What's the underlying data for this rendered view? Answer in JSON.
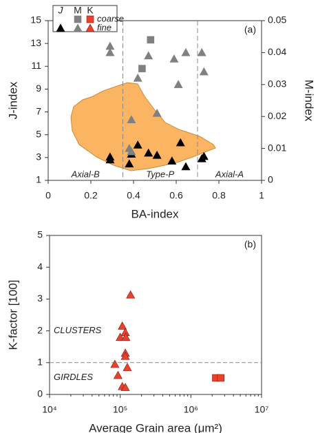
{
  "chart_data": [
    {
      "type": "scatter",
      "label": "(a)",
      "x_label": "BA-index",
      "y_label": "J-index",
      "y2_label": "M-index",
      "xlim": [
        0,
        1
      ],
      "xticks": [
        0,
        0.2,
        0.4,
        0.6,
        0.8,
        1
      ],
      "ylim": [
        1,
        15
      ],
      "yticks": [
        1,
        3,
        5,
        7,
        9,
        11,
        13,
        15
      ],
      "y2lim": [
        0,
        0.05
      ],
      "y2ticks": [
        0,
        0.01,
        0.02,
        0.03,
        0.04,
        0.05
      ],
      "vlines": [
        0.35,
        0.7
      ],
      "annotations": [
        "Axial-B",
        "Type-P",
        "Axial-A"
      ],
      "legend": {
        "columns": [
          "J",
          "M",
          "K"
        ],
        "rows": [
          "coarse",
          "fine"
        ]
      },
      "series": [
        {
          "marker": "triangle",
          "color": "#000000",
          "x": [
            0.29,
            0.29,
            0.39,
            0.38,
            0.42,
            0.47,
            0.51,
            0.58,
            0.62,
            0.645,
            0.72,
            0.73
          ],
          "values": [
            3.05,
            2.8,
            3.3,
            2.45,
            4.1,
            3.4,
            3.2,
            2.7,
            4.3,
            2.2,
            2.9,
            3.1
          ]
        },
        {
          "marker": "triangle",
          "color": "#808080",
          "axis": "y2",
          "x": [
            0.29,
            0.29,
            0.47,
            0.42,
            0.59,
            0.645,
            0.72,
            0.73,
            0.61,
            0.51,
            0.39,
            0.38,
            0.39
          ],
          "values": [
            0.042,
            0.04,
            0.039,
            0.032,
            0.038,
            0.04,
            0.04,
            0.034,
            0.03,
            0.021,
            0.019,
            0.01,
            0.009
          ]
        },
        {
          "marker": "square",
          "color": "#808080",
          "axis": "y2",
          "x": [
            0.48,
            0.44
          ],
          "values": [
            0.044,
            0.035
          ]
        }
      ]
    },
    {
      "type": "scatter",
      "label": "(b)",
      "xscale": "log",
      "x_label": "Average Grain area (μm²)",
      "y_label": "K-factor [100]",
      "xlim": [
        10000,
        10000000
      ],
      "xticks": [
        {
          "value": 10000,
          "label": "10⁴"
        },
        {
          "value": 100000,
          "label": "10⁵"
        },
        {
          "value": 1000000,
          "label": "10⁶"
        },
        {
          "value": 10000000,
          "label": "10⁷"
        }
      ],
      "ylim": [
        0,
        5
      ],
      "yticks": [
        0,
        1,
        2,
        3,
        4,
        5
      ],
      "hlines": [
        1
      ],
      "annotations": [
        "CLUSTERS",
        "GIRDLES"
      ],
      "series": [
        {
          "marker": "triangle",
          "color": "#e8412c",
          "x": [
            140000,
            107000,
            118000,
            100000,
            120000,
            118000,
            118000,
            126000,
            84000,
            93000,
            107000,
            118000
          ],
          "values": [
            3.13,
            2.15,
            1.95,
            1.8,
            1.8,
            1.3,
            1.2,
            0.85,
            0.95,
            0.6,
            0.25,
            0.22
          ]
        },
        {
          "marker": "square",
          "color": "#e8412c",
          "x": [
            2250000,
            2650000
          ],
          "values": [
            0.52,
            0.52
          ]
        }
      ]
    }
  ]
}
